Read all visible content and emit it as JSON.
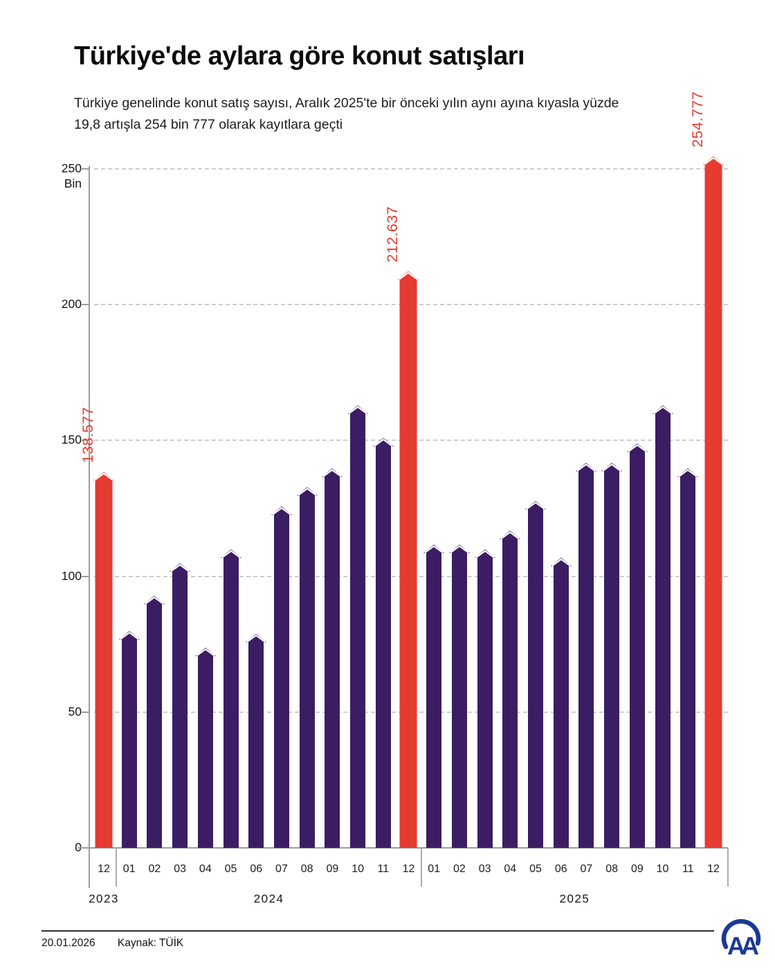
{
  "header": {
    "title": "Türkiye'de aylara göre konut satışları",
    "subtitle": "Türkiye genelinde konut satış sayısı, Aralık 2025'te bir önceki yılın aynı ayına kıyasla yüzde 19,8 artışla 254 bin 777 olarak kayıtlara geçti"
  },
  "chart_data": {
    "type": "bar",
    "title": "Türkiye'de aylara göre konut satışları",
    "unit_label": "Bin",
    "ylim": [
      0,
      250
    ],
    "yticks": [
      {
        "value": 250,
        "label": "250"
      },
      {
        "value": 200,
        "label": "200"
      },
      {
        "value": 150,
        "label": "150"
      },
      {
        "value": 100,
        "label": "100"
      },
      {
        "value": 50,
        "label": "50"
      },
      {
        "value": 0,
        "label": "0"
      }
    ],
    "grid": "horizontal dashed",
    "legend": "none",
    "colors": {
      "bar": "#3b1d63",
      "highlight": "#e63b31",
      "axis": "#9c9c9c",
      "grid": "#cdcdcd"
    },
    "groups": [
      {
        "year": "2023",
        "bars": [
          {
            "month": "12",
            "value": 138.577,
            "highlight": true,
            "label": "138.577"
          }
        ]
      },
      {
        "year": "2024",
        "bars": [
          {
            "month": "01",
            "value": 80
          },
          {
            "month": "02",
            "value": 93
          },
          {
            "month": "03",
            "value": 105
          },
          {
            "month": "04",
            "value": 74
          },
          {
            "month": "05",
            "value": 110
          },
          {
            "month": "06",
            "value": 79
          },
          {
            "month": "07",
            "value": 126
          },
          {
            "month": "08",
            "value": 133
          },
          {
            "month": "09",
            "value": 140
          },
          {
            "month": "10",
            "value": 163
          },
          {
            "month": "11",
            "value": 151
          },
          {
            "month": "12",
            "value": 212.637,
            "highlight": true,
            "label": "212.637"
          }
        ]
      },
      {
        "year": "2025",
        "bars": [
          {
            "month": "01",
            "value": 112
          },
          {
            "month": "02",
            "value": 112
          },
          {
            "month": "03",
            "value": 110
          },
          {
            "month": "04",
            "value": 117
          },
          {
            "month": "05",
            "value": 128
          },
          {
            "month": "06",
            "value": 107
          },
          {
            "month": "07",
            "value": 142
          },
          {
            "month": "08",
            "value": 142
          },
          {
            "month": "09",
            "value": 149
          },
          {
            "month": "10",
            "value": 163
          },
          {
            "month": "11",
            "value": 140
          },
          {
            "month": "12",
            "value": 254.777,
            "highlight": true,
            "label": "254.777"
          }
        ]
      }
    ]
  },
  "footer": {
    "date": "20.01.2026",
    "source": "Kaynak: TÜİK",
    "logo": "AA"
  }
}
